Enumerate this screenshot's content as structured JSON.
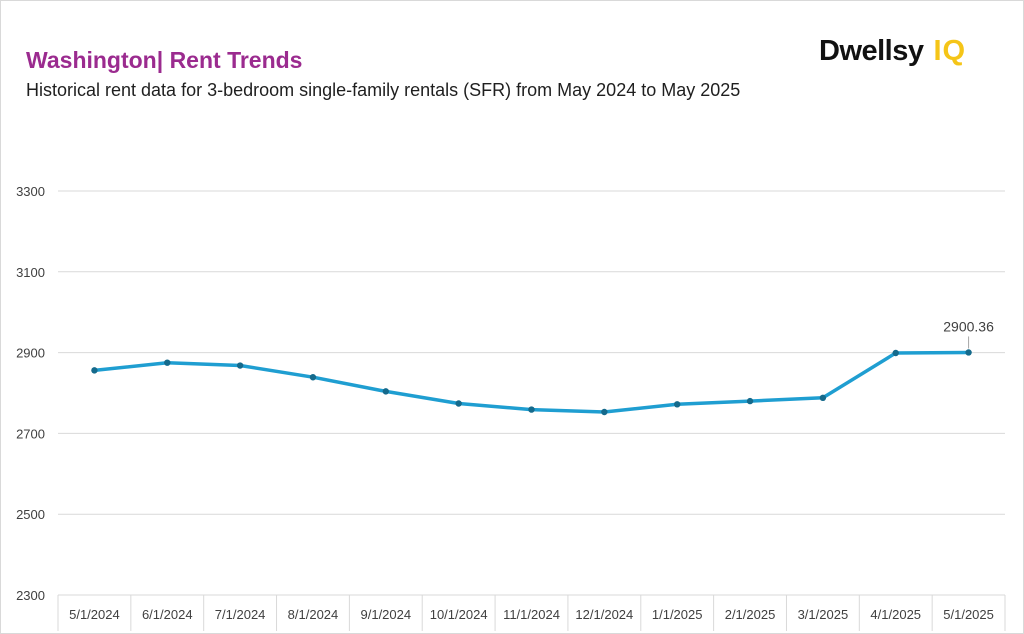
{
  "header": {
    "title_location": "Washington",
    "title_separator": "| ",
    "title_topic": "Rent Trends",
    "subtitle": "Historical rent data for 3-bedroom single-family rentals (SFR) from May 2024 to May 2025"
  },
  "logo": {
    "word": "Dwellsy",
    "mark": "IQ"
  },
  "colors": {
    "title": "#9b2b8f",
    "line": "#1f9ed1",
    "marker": "#156a8c",
    "grid": "#d9d9d9",
    "axis_text": "#404040",
    "logo_accent": "#f5c518"
  },
  "chart_data": {
    "type": "line",
    "title": "Washington| Rent Trends",
    "subtitle": "Historical rent data for 3-bedroom single-family rentals (SFR) from May 2024 to May 2025",
    "xlabel": "",
    "ylabel": "",
    "categories": [
      "5/1/2024",
      "6/1/2024",
      "7/1/2024",
      "8/1/2024",
      "9/1/2024",
      "10/1/2024",
      "11/1/2024",
      "12/1/2024",
      "1/1/2025",
      "2/1/2025",
      "3/1/2025",
      "4/1/2025",
      "5/1/2025"
    ],
    "series": [
      {
        "values": [
          2856,
          2875,
          2868,
          2839,
          2804,
          2774,
          2759,
          2753,
          2772,
          2780,
          2788,
          2899,
          2900.36
        ]
      }
    ],
    "ylim": [
      2300,
      3300
    ],
    "yticks": [
      2300,
      2500,
      2700,
      2900,
      3100,
      3300
    ],
    "grid": true,
    "legend": "none",
    "data_labels": [
      {
        "index": 12,
        "text": "2900.36"
      }
    ]
  }
}
